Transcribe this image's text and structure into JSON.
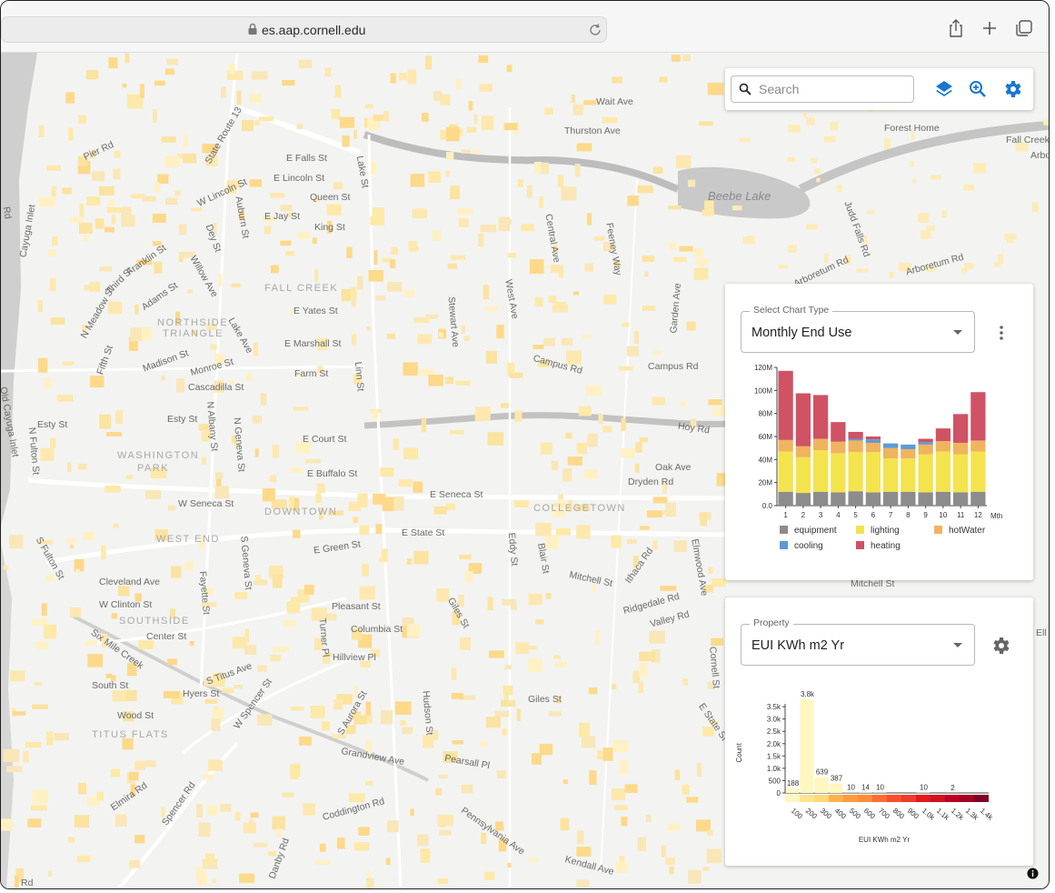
{
  "browser": {
    "url": "es.aap.cornell.edu"
  },
  "search": {
    "placeholder": "Search"
  },
  "colors": {
    "accent": "#1976d2",
    "equipment": "#8c8c8c",
    "lighting": "#f3e34d",
    "hotWater": "#efb45e",
    "cooling": "#5b9bd5",
    "heating": "#cf5265"
  },
  "map_labels": {
    "streets": [
      "Wait Ave",
      "Thurston Ave",
      "Forest Home",
      "Fall Creek",
      "Arbo",
      "Beebe Lake",
      "Pier Rd",
      "State Route 13",
      "E Falls St",
      "E Lincoln St",
      "W Lincoln St",
      "Queen St",
      "E Jay St",
      "King St",
      "Auburn St",
      "Dey St",
      "Lake St",
      "Central Ave",
      "Feeney Way",
      "Judd Falls Rd",
      "Arboretum Rd",
      "Arboretum Rd",
      "Franklin St",
      "Third St",
      "Adams St",
      "Willow Ave",
      "N Meadow St",
      "FALL CREEK",
      "E Yates St",
      "Stewart Ave",
      "West Ave",
      "Garden Ave",
      "NORTHSIDE",
      "TRIANGLE",
      "E Marshall St",
      "Lake Ave",
      "Campus Rd",
      "Campus Rd",
      "Fifth St",
      "Madison St",
      "Monroe St",
      "Farm St",
      "Linn St",
      "Cascadilla St",
      "Old Cayuga Inlet",
      "Esty St",
      "Esty St",
      "N Fulton St",
      "N Albany St",
      "N Geneva St",
      "Hoy Rd",
      "E Court St",
      "WASHINGTON",
      "PARK",
      "E Buffalo St",
      "Oak Ave",
      "Dryden Rd",
      "E Seneca St",
      "W Seneca St",
      "DOWNTOWN",
      "COLLEGETOWN",
      "E State St",
      "WEST END",
      "E Green St",
      "S Fulton St",
      "S Geneva St",
      "Eddy St",
      "Blair St",
      "Mitchell St",
      "Ithaca Rd",
      "Elmwood Ave",
      "Cleveland Ave",
      "Fayette St",
      "W Clinton St",
      "Pleasant St",
      "Giles St",
      "Ridgedale Rd",
      "Valley Rd",
      "SOUTHSIDE",
      "Columbia St",
      "Turner Pl",
      "Center St",
      "Six Mile Creek",
      "Hillview Pl",
      "Cornell St",
      "S Titus Ave",
      "South St",
      "Hyers St",
      "Wood St",
      "W Spencer St",
      "S Aurora St",
      "Hudson St",
      "Giles St",
      "E State St",
      "TITUS FLATS",
      "Grandview Ave",
      "Pearsall Pl",
      "Coddington Rd",
      "Elmira Rd",
      "Spencer Rd",
      "Danby Rd",
      "Pennsylvania Ave",
      "Kendall Ave",
      "Cayuga Inlet",
      "Rd",
      "Mitchell St",
      "Ell",
      "Rd"
    ]
  },
  "chart_panel": {
    "select_legend": "Select Chart Type",
    "select_value": "Monthly End Use",
    "chart_data": {
      "type": "bar",
      "stacked": true,
      "categories": [
        "1",
        "2",
        "3",
        "4",
        "5",
        "6",
        "7",
        "8",
        "9",
        "10",
        "11",
        "12"
      ],
      "xlabel": "Mth",
      "ylabel": "",
      "ylim": [
        0,
        120000000
      ],
      "yticks": [
        "0.0",
        "20M",
        "40M",
        "60M",
        "80M",
        "100M",
        "120M"
      ],
      "series": [
        {
          "name": "equipment",
          "values": [
            12000000,
            11000000,
            12000000,
            11500000,
            12500000,
            11500000,
            12000000,
            12000000,
            11500000,
            12000000,
            11500000,
            12000000
          ]
        },
        {
          "name": "lighting",
          "values": [
            35000000,
            31000000,
            36000000,
            34000000,
            34000000,
            35000000,
            29000000,
            29000000,
            33000000,
            35000000,
            33000000,
            35000000
          ]
        },
        {
          "name": "hotWater",
          "values": [
            10000000,
            9500000,
            10000000,
            10000000,
            10000000,
            8000000,
            9000000,
            8000000,
            8500000,
            9000000,
            10000000,
            9500000
          ]
        },
        {
          "name": "cooling",
          "values": [
            0,
            0,
            0,
            0,
            1500000,
            3000000,
            4000000,
            4000000,
            2000000,
            0,
            0,
            0
          ]
        },
        {
          "name": "heating",
          "values": [
            60000000,
            46000000,
            38000000,
            17000000,
            6000000,
            2500000,
            0,
            0,
            3000000,
            11000000,
            25000000,
            42000000
          ]
        }
      ],
      "legend": [
        "equipment",
        "lighting",
        "hotWater",
        "cooling",
        "heating"
      ]
    }
  },
  "property_panel": {
    "select_legend": "Property",
    "select_value": "EUI KWh m2 Yr",
    "chart_data": {
      "type": "bar",
      "categories": [
        "100",
        "200",
        "300",
        "400",
        "500",
        "600",
        "700",
        "800",
        "900",
        "1.0k",
        "1.1k",
        "1.2k",
        "1.3k",
        "1.4k"
      ],
      "values": [
        188,
        3800,
        639,
        387,
        10,
        14,
        10,
        0,
        0,
        10,
        0,
        2,
        0,
        0
      ],
      "data_labels": [
        "188",
        "3.8k",
        "639",
        "387",
        "10",
        "14",
        "10",
        "",
        "",
        "10",
        "",
        "2",
        "",
        ""
      ],
      "xlabel": "EUI KWh m2 Yr",
      "ylabel": "Count",
      "ylim": [
        0,
        3800
      ],
      "yticks": [
        "0",
        "500",
        "1.0k",
        "1.5k",
        "2.0k",
        "2.5k",
        "3.0k",
        "3.5k"
      ],
      "scale_colors": [
        "#fff7bc",
        "#fee391",
        "#fed976",
        "#feb24c",
        "#fd9b3f",
        "#fd8d3c",
        "#fc6d33",
        "#fc4e2a",
        "#ef3b2c",
        "#e31a1c",
        "#d0131f",
        "#bd0026",
        "#a50026",
        "#800026"
      ]
    }
  }
}
